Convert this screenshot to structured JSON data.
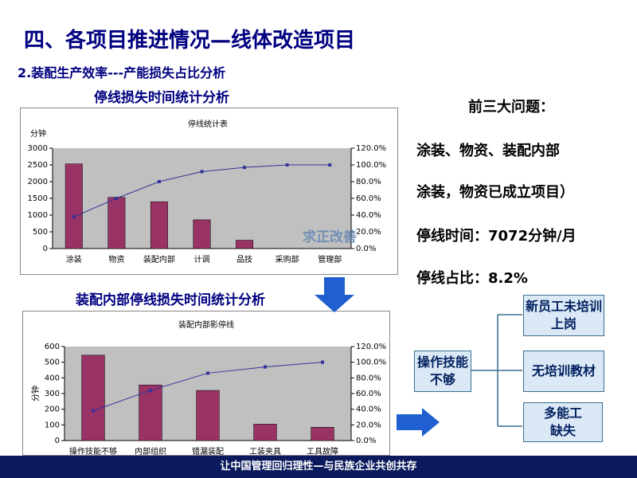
{
  "header": {
    "title": "四、各项目推进情况—线体改造项目",
    "subtitle": "2.装配生产效率---产能损失占比分析"
  },
  "captions": [
    "停线损失时间统计分析",
    "装配内部停线损失时间统计分析"
  ],
  "chart_data": [
    {
      "type": "bar",
      "title": "停线统计表",
      "y_label": "分钟",
      "categories": [
        "涂装",
        "物资",
        "装配内部",
        "计调",
        "品技",
        "采购部",
        "管理部"
      ],
      "series": [
        {
          "color": "#993366",
          "values": [
            2530,
            1530,
            1400,
            860,
            250,
            0,
            0
          ]
        },
        {
          "color": "#333399",
          "axis": "y2",
          "values": [
            38,
            60,
            80,
            92,
            97,
            100,
            100
          ]
        }
      ],
      "ylim": [
        0,
        3000
      ],
      "yticks": [
        0,
        500,
        1000,
        1500,
        2000,
        2500,
        3000
      ],
      "y2lim": [
        0,
        120
      ],
      "y2ticks": [
        {
          "value": 0,
          "label": "0.0%"
        },
        {
          "value": 20,
          "label": "20.0%"
        },
        {
          "value": 40,
          "label": "40.0%"
        },
        {
          "value": 60,
          "label": "60.0%"
        },
        {
          "value": 80,
          "label": "80.0%"
        },
        {
          "value": 100,
          "label": "100.0%"
        },
        {
          "value": 120,
          "label": "120.0%"
        }
      ]
    },
    {
      "type": "bar",
      "title": "装配内部影停线",
      "y_label": "分钟",
      "categories": [
        "操作技能不够",
        "内部组织",
        "错漏装配",
        "工装夹具",
        "工具故障"
      ],
      "series": [
        {
          "color": "#993366",
          "values": [
            545,
            355,
            320,
            105,
            85
          ]
        },
        {
          "color": "#333399",
          "axis": "y2",
          "values": [
            38,
            64,
            86,
            94,
            100
          ]
        }
      ],
      "ylim": [
        0,
        600
      ],
      "yticks": [
        0,
        100,
        200,
        300,
        400,
        500,
        600
      ],
      "y2lim": [
        0,
        120
      ],
      "y2ticks": [
        {
          "value": 0,
          "label": "0.0%"
        },
        {
          "value": 20,
          "label": "20.0%"
        },
        {
          "value": 40,
          "label": "40.0%"
        },
        {
          "value": 60,
          "label": "60.0%"
        },
        {
          "value": 80,
          "label": "80.0%"
        },
        {
          "value": 100,
          "label": "100.0%"
        },
        {
          "value": 120,
          "label": "120.0%"
        }
      ]
    }
  ],
  "notes": [
    "前三大问题：",
    "涂装、物资、装配内部",
    "涂装，物资已成立项目）",
    "停线时间：7072分钟/月",
    "停线占比：8.2%"
  ],
  "diagram": {
    "root": "操作技能不够",
    "children": [
      "新员工未培训上岗",
      "无培训教材",
      "多能工缺失"
    ]
  },
  "logo": "求正改善",
  "footer": "让中国管理回归理性—与民族企业共创共存"
}
